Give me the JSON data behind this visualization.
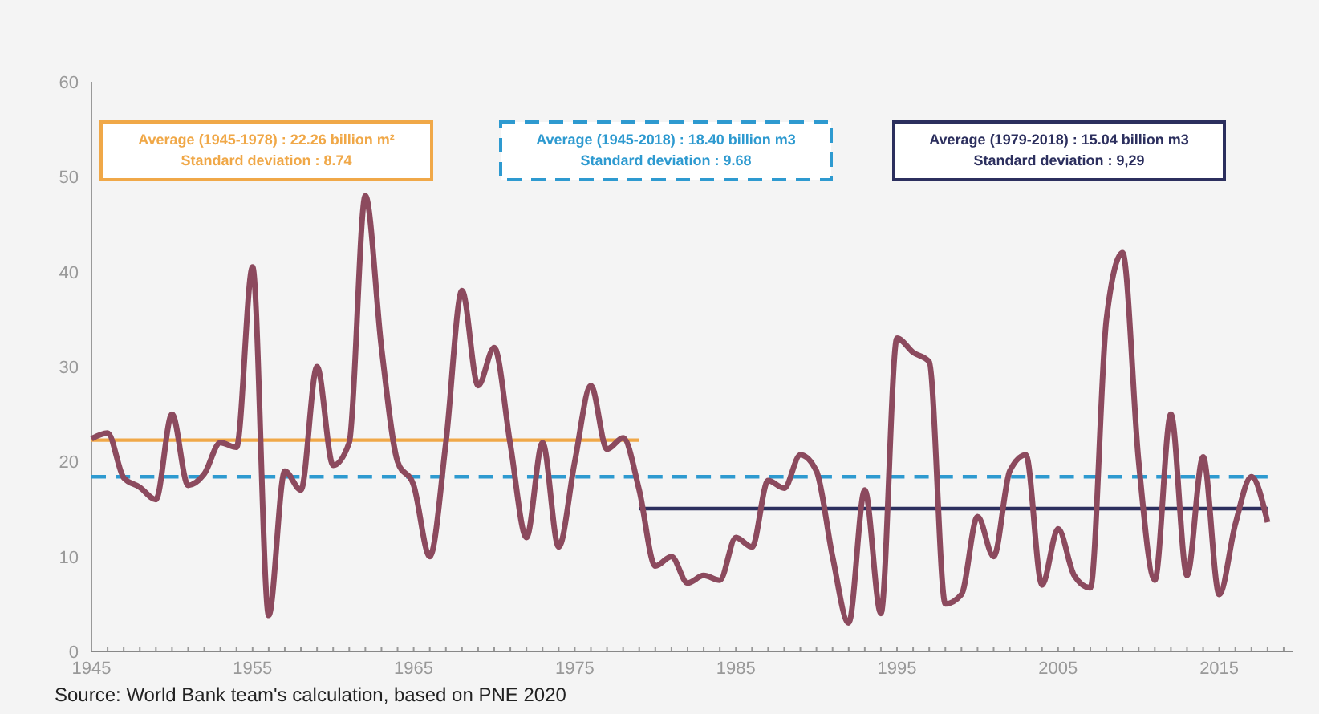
{
  "chart_data": {
    "type": "line",
    "xlim": [
      1945,
      2019.6
    ],
    "ylim": [
      0,
      60
    ],
    "yticks": [
      0,
      10,
      20,
      30,
      40,
      50,
      60
    ],
    "xticks": [
      1945,
      {
        "value": 1946,
        "label": null
      },
      {
        "value": 1947,
        "label": null
      },
      {
        "value": 1948,
        "label": null
      },
      {
        "value": 1949,
        "label": null
      },
      {
        "value": 1950,
        "label": null
      },
      {
        "value": 1951,
        "label": null
      },
      {
        "value": 1952,
        "label": null
      },
      {
        "value": 1953,
        "label": null
      },
      {
        "value": 1954,
        "label": null
      },
      1955,
      {
        "value": 1956,
        "label": null
      },
      {
        "value": 1957,
        "label": null
      },
      {
        "value": 1958,
        "label": null
      },
      {
        "value": 1959,
        "label": null
      },
      {
        "value": 1960,
        "label": null
      },
      {
        "value": 1961,
        "label": null
      },
      {
        "value": 1962,
        "label": null
      },
      {
        "value": 1963,
        "label": null
      },
      {
        "value": 1964,
        "label": null
      },
      1965,
      {
        "value": 1966,
        "label": null
      },
      {
        "value": 1967,
        "label": null
      },
      {
        "value": 1968,
        "label": null
      },
      {
        "value": 1969,
        "label": null
      },
      {
        "value": 1970,
        "label": null
      },
      {
        "value": 1971,
        "label": null
      },
      {
        "value": 1972,
        "label": null
      },
      {
        "value": 1973,
        "label": null
      },
      {
        "value": 1974,
        "label": null
      },
      1975,
      {
        "value": 1976,
        "label": null
      },
      {
        "value": 1977,
        "label": null
      },
      {
        "value": 1978,
        "label": null
      },
      {
        "value": 1979,
        "label": null
      },
      {
        "value": 1980,
        "label": null
      },
      {
        "value": 1981,
        "label": null
      },
      {
        "value": 1982,
        "label": null
      },
      {
        "value": 1983,
        "label": null
      },
      {
        "value": 1984,
        "label": null
      },
      1985,
      {
        "value": 1986,
        "label": null
      },
      {
        "value": 1987,
        "label": null
      },
      {
        "value": 1988,
        "label": null
      },
      {
        "value": 1989,
        "label": null
      },
      {
        "value": 1990,
        "label": null
      },
      {
        "value": 1991,
        "label": null
      },
      {
        "value": 1992,
        "label": null
      },
      {
        "value": 1993,
        "label": null
      },
      {
        "value": 1994,
        "label": null
      },
      1995,
      {
        "value": 1996,
        "label": null
      },
      {
        "value": 1997,
        "label": null
      },
      {
        "value": 1998,
        "label": null
      },
      {
        "value": 1999,
        "label": null
      },
      {
        "value": 2000,
        "label": null
      },
      {
        "value": 2001,
        "label": null
      },
      {
        "value": 2002,
        "label": null
      },
      {
        "value": 2003,
        "label": null
      },
      {
        "value": 2004,
        "label": null
      },
      2005,
      {
        "value": 2006,
        "label": null
      },
      {
        "value": 2007,
        "label": null
      },
      {
        "value": 2008,
        "label": null
      },
      {
        "value": 2009,
        "label": null
      },
      {
        "value": 2010,
        "label": null
      },
      {
        "value": 2011,
        "label": null
      },
      {
        "value": 2012,
        "label": null
      },
      {
        "value": 2013,
        "label": null
      },
      {
        "value": 2014,
        "label": null
      },
      2015,
      {
        "value": 2016,
        "label": null
      },
      {
        "value": 2017,
        "label": null
      },
      {
        "value": 2018,
        "label": null
      },
      {
        "value": 2019,
        "label": null
      }
    ],
    "x": [
      1945,
      1946,
      1947,
      1948,
      1949,
      1950,
      1951,
      1952,
      1953,
      1954,
      1955,
      1956,
      1957,
      1958,
      1959,
      1960,
      1961,
      1962,
      1963,
      1964,
      1965,
      1966,
      1967,
      1968,
      1969,
      1970,
      1971,
      1972,
      1973,
      1974,
      1975,
      1976,
      1977,
      1978,
      1979,
      1980,
      1981,
      1982,
      1983,
      1984,
      1985,
      1986,
      1987,
      1988,
      1989,
      1990,
      1991,
      1992,
      1993,
      1994,
      1995,
      1996,
      1997,
      1998,
      1999,
      2000,
      2001,
      2002,
      2003,
      2004,
      2005,
      2006,
      2007,
      2008,
      2009,
      2010,
      2011,
      2012,
      2013,
      2014,
      2015,
      2016,
      2017,
      2018
    ],
    "series": [
      {
        "color": "#8c4a5e",
        "values": [
          22.4,
          23,
          18.3,
          17.3,
          16,
          25,
          17.5,
          18.7,
          22,
          21.5,
          40.5,
          3.8,
          19,
          17,
          30,
          19.6,
          22,
          48,
          32,
          20,
          17.5,
          10,
          22,
          38,
          28,
          32,
          21.8,
          12,
          22,
          11,
          20,
          28,
          21.3,
          22.5,
          17,
          9,
          10,
          7.2,
          8,
          7.5,
          12,
          11,
          18,
          17.2,
          20.7,
          19,
          10,
          3,
          17,
          4,
          33,
          31.5,
          30.5,
          5,
          6,
          14.2,
          10,
          19,
          20.7,
          7,
          12.9,
          8,
          6.7,
          35,
          42,
          20,
          7.5,
          25,
          8,
          20.5,
          6,
          13.4,
          18.4,
          13.6
        ]
      },
      {
        "type": "line",
        "color": "#f0a848",
        "line_style": "solid",
        "x": [
          1945,
          1979
        ],
        "values": [
          22.26,
          22.26
        ]
      },
      {
        "type": "line",
        "color": "#2e9ad0",
        "line_style": "dashed",
        "x": [
          1945,
          2018
        ],
        "values": [
          18.4,
          18.4
        ]
      },
      {
        "type": "line",
        "color": "#2c2f5e",
        "line_style": "solid",
        "x": [
          1979,
          2018
        ],
        "values": [
          15.04,
          15.04
        ]
      }
    ],
    "annotations": [
      "Average (1945-1978) : 22.26 billion m²\nStandard deviation : 8.74",
      "Average (1945-2018) : 18.40 billion m3\nStandard deviation : 9.68",
      "Average (1979-2018) : 15.04 billion m3\nStandard deviation : 9,29",
      "Source: World Bank team's calculation, based on PNE 2020"
    ]
  }
}
